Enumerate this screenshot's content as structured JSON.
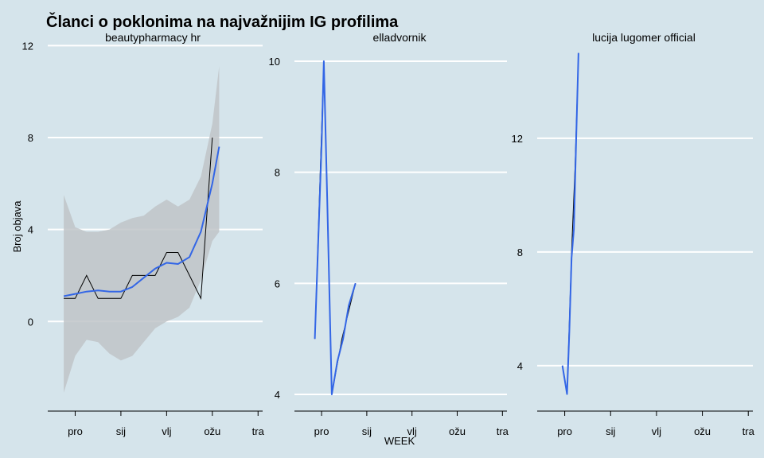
{
  "chart_data": {
    "type": "line",
    "title": "Članci o poklonima na najvažnijim IG profilima",
    "xlabel": "WEEK",
    "ylabel": "Broj objava",
    "x_ticks": [
      "pro",
      "sij",
      "vlj",
      "ožu",
      "tra"
    ],
    "x_domain": [
      -1.2,
      8.2
    ],
    "colors": {
      "background": "#d5e4eb",
      "grid": "#ffffff",
      "smooth": "#3366e6",
      "ribbon": "#bfc4c8",
      "raw": "#000000"
    },
    "grid": true,
    "legend": "none",
    "facets": [
      {
        "name": "beautypharmacy_hr",
        "label": "beautypharmacy  hr",
        "ylim": [
          -3.9,
          12.6
        ],
        "y_ticks": [
          0,
          4,
          8,
          12
        ],
        "raw": {
          "x": [
            -0.5,
            0.0,
            0.5,
            1.0,
            1.5,
            2.0,
            2.5,
            3.0,
            3.5,
            4.0,
            4.5,
            5.0,
            5.5,
            6.0
          ],
          "y": [
            1,
            1,
            2,
            1,
            1,
            1,
            2,
            2,
            2,
            3,
            3,
            2,
            1,
            8
          ]
        },
        "smooth": {
          "x": [
            -0.5,
            0.0,
            0.5,
            1.0,
            1.5,
            2.0,
            2.5,
            3.0,
            3.5,
            4.0,
            4.5,
            5.0,
            5.5,
            6.0,
            6.3
          ],
          "y": [
            1.1,
            1.2,
            1.3,
            1.35,
            1.3,
            1.3,
            1.5,
            1.9,
            2.3,
            2.55,
            2.5,
            2.8,
            3.9,
            6.0,
            7.6
          ]
        },
        "ribbon": {
          "x": [
            -0.5,
            0.0,
            0.5,
            1.0,
            1.5,
            2.0,
            2.5,
            3.0,
            3.5,
            4.0,
            4.5,
            5.0,
            5.5,
            6.0,
            6.3
          ],
          "lower": [
            -3.1,
            -1.5,
            -0.8,
            -0.9,
            -1.4,
            -1.7,
            -1.5,
            -0.9,
            -0.3,
            0.0,
            0.2,
            0.6,
            1.8,
            3.5,
            3.9
          ],
          "upper": [
            5.5,
            4.1,
            3.9,
            3.9,
            4.0,
            4.3,
            4.5,
            4.6,
            5.0,
            5.3,
            5.0,
            5.3,
            6.3,
            8.6,
            11.1
          ]
        }
      },
      {
        "name": "elladvornik",
        "label": "elladvornik",
        "ylim": [
          3.7,
          10.3
        ],
        "y_ticks": [
          4,
          6,
          8,
          10
        ],
        "raw": {
          "x": [
            -0.3,
            0.1,
            0.45,
            0.9,
            1.5
          ],
          "y": [
            5,
            10,
            4,
            5,
            6
          ]
        },
        "smooth": {
          "x": [
            -0.3,
            0.0,
            0.1,
            0.25,
            0.45,
            0.7,
            0.95,
            1.2,
            1.5
          ],
          "y": [
            5.0,
            8.5,
            10.0,
            7.5,
            4.0,
            4.6,
            5.0,
            5.6,
            6.0
          ]
        }
      },
      {
        "name": "lucija_lugomer_official",
        "label": "lucija  lugomer  official",
        "ylim": [
          2.4,
          15.3
        ],
        "y_ticks": [
          4,
          8,
          12
        ],
        "raw": {
          "x": [
            -0.1,
            0.1,
            0.3,
            0.45,
            0.6
          ],
          "y": [
            4,
            3,
            8,
            11,
            15
          ]
        },
        "smooth": {
          "x": [
            -0.1,
            0.1,
            0.2,
            0.3,
            0.4,
            0.5,
            0.6
          ],
          "y": [
            4.0,
            3.0,
            5.2,
            7.8,
            8.8,
            12.0,
            15.0
          ]
        }
      }
    ]
  }
}
